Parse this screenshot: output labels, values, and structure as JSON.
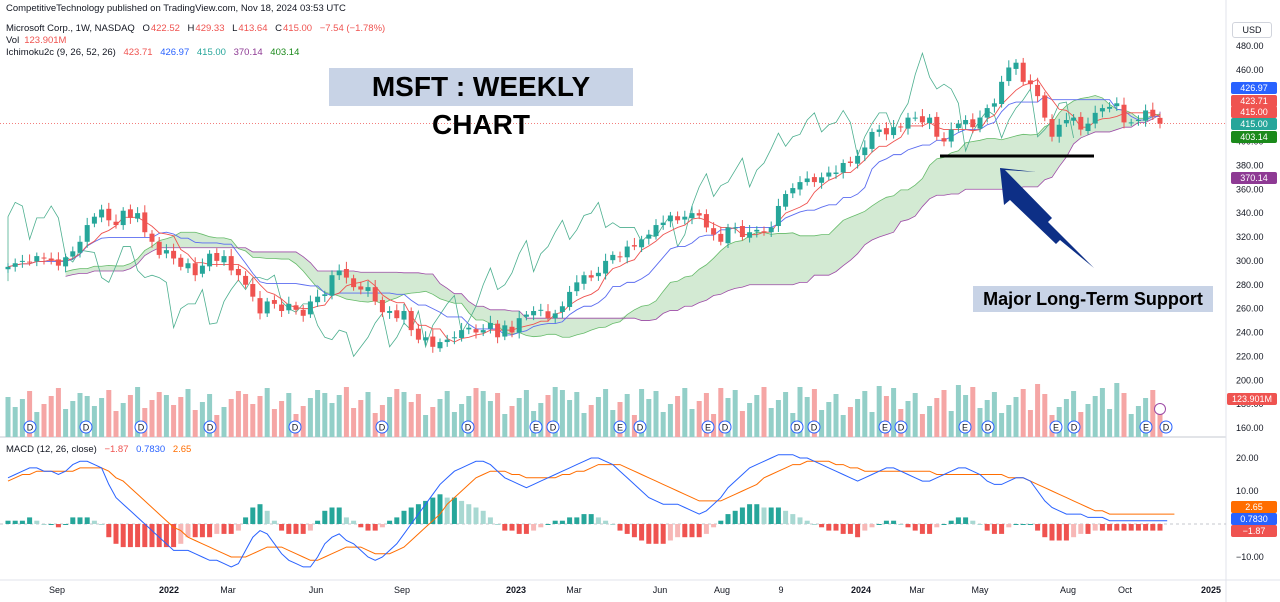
{
  "publisher_line": "CompetitiveTechnology published on TradingView.com, Nov 18, 2024 03:53 UTC",
  "legend": {
    "symbol": "Microsoft Corp., 1W, NASDAQ",
    "o_label": "O",
    "o_value": "422.52",
    "h_label": "H",
    "h_value": "429.33",
    "l_label": "L",
    "l_value": "413.64",
    "c_label": "C",
    "c_value": "415.00",
    "change": "−7.54 (−1.78%)",
    "vol_label": "Vol",
    "vol_value": "123.901M",
    "ichimoku_label": "Ichimoku2c (9, 26, 52, 26)",
    "ichimoku_values": [
      "423.71",
      "426.97",
      "415.00",
      "370.14",
      "403.14"
    ],
    "macd_label": "MACD (12, 26, close)",
    "macd_values": [
      "−1.87",
      "0.7830",
      "2.65"
    ]
  },
  "annotations": {
    "title": "MSFT : WEEKLY CHART",
    "support": "Major Long-Term Support"
  },
  "currency": "USD",
  "colors": {
    "up": "#26a69a",
    "down": "#ef5350",
    "vol_up": "#93cfc8",
    "vol_down": "#f5a6a5",
    "tenkan": "#ef5350",
    "kijun": "#5b6cf0",
    "lagging": "#4caf8f",
    "span_a": "#66bb6a",
    "span_b": "#9c4aa5",
    "cloud": "#d3ead3",
    "macd": "#2962ff",
    "signal": "#ff6d00",
    "arrow": "#0d2f86"
  },
  "price_badges": [
    {
      "value": "426.97",
      "color": "#2962ff"
    },
    {
      "value": "423.71",
      "color": "#ef5350"
    },
    {
      "value": "415.00",
      "color": "#ef5350"
    },
    {
      "value": "415.00",
      "color": "#26a69a"
    },
    {
      "value": "403.14",
      "color": "#1b8a1b"
    },
    {
      "value": "370.14",
      "color": "#8e3a94"
    },
    {
      "value": "123.901M",
      "color": "#ef5350"
    }
  ],
  "macd_badges": [
    {
      "value": "2.65",
      "color": "#ff6d00"
    },
    {
      "value": "0.7830",
      "color": "#2962ff"
    },
    {
      "value": "−1.87",
      "color": "#ef5350"
    }
  ],
  "chart_data": {
    "type": "candlestick",
    "price_axis": {
      "ticks": [
        480,
        460,
        420,
        400,
        380,
        360,
        340,
        320,
        300,
        280,
        260,
        240,
        220,
        200,
        180,
        160
      ],
      "labels": [
        "480.00",
        "460.00",
        "420.00",
        "400.00",
        "380.00",
        "360.00",
        "340.00",
        "320.00",
        "300.00",
        "280.00",
        "260.00",
        "240.00",
        "220.00",
        "200.00",
        "180.00",
        "160.00"
      ]
    },
    "macd_axis": {
      "ticks": [
        20,
        10,
        -10
      ],
      "labels": [
        "20.00",
        "10.00",
        "−10.00"
      ]
    },
    "time_axis": [
      "Sep",
      "2022",
      "Mar",
      "Jun",
      "Sep",
      "2023",
      "Mar",
      "Jun",
      "Aug",
      "9",
      "2024",
      "Mar",
      "May",
      "Aug",
      "Oct",
      "2025"
    ],
    "close": [
      295,
      298,
      300,
      299,
      304,
      302,
      300,
      296,
      303,
      308,
      316,
      330,
      337,
      343,
      334,
      330,
      342,
      336,
      340,
      324,
      316,
      305,
      309,
      302,
      295,
      298,
      288,
      296,
      306,
      300,
      304,
      292,
      288,
      280,
      270,
      256,
      266,
      264,
      258,
      264,
      259,
      254,
      266,
      270,
      272,
      288,
      292,
      286,
      278,
      276,
      278,
      266,
      257,
      258,
      252,
      258,
      242,
      234,
      236,
      228,
      232,
      234,
      236,
      242,
      244,
      240,
      242,
      248,
      236,
      246,
      240,
      252,
      255,
      258,
      259,
      252,
      256,
      262,
      274,
      282,
      288,
      286,
      290,
      300,
      305,
      303,
      312,
      312,
      318,
      322,
      330,
      332,
      338,
      334,
      337,
      340,
      338,
      328,
      322,
      316,
      328,
      328,
      320,
      324,
      326,
      324,
      328,
      346,
      356,
      361,
      366,
      369,
      366,
      370,
      374,
      374,
      382,
      382,
      388,
      395,
      408,
      410,
      406,
      412,
      412,
      420,
      420,
      416,
      420,
      404,
      400,
      410,
      415,
      418,
      412,
      420,
      428,
      432,
      450,
      462,
      466,
      450,
      448,
      438,
      420,
      404,
      414,
      418,
      420,
      410,
      415,
      424,
      428,
      429,
      432,
      416,
      416,
      418,
      426,
      421,
      415
    ],
    "volume_millions_scale": "relative",
    "ichimoku_last": {
      "tenkan": 423.71,
      "kijun": 426.97,
      "lagging": 415.0,
      "span_b": 370.14,
      "span_a": 403.14
    },
    "macd_last": {
      "histogram": -1.87,
      "macd": 0.783,
      "signal": 2.65
    },
    "macd": [
      14,
      15,
      16,
      17,
      17,
      16,
      16,
      15,
      16,
      18,
      19,
      19,
      18,
      17,
      12,
      8,
      6,
      4,
      2,
      0,
      -2,
      -4,
      -6,
      -8,
      -8,
      -8,
      -9,
      -10,
      -11,
      -11,
      -12,
      -13,
      -12,
      -8,
      -4,
      -2,
      -3,
      -6,
      -9,
      -11,
      -12,
      -13,
      -13,
      -10,
      -6,
      -4,
      -3,
      -5,
      -6,
      -8,
      -10,
      -11,
      -10,
      -8,
      -6,
      -3,
      0,
      3,
      6,
      9,
      12,
      14,
      16,
      17,
      18,
      19,
      19,
      18,
      16,
      14,
      13,
      12,
      11,
      12,
      13,
      14,
      15,
      16,
      17,
      18,
      19,
      20,
      20,
      19,
      18,
      16,
      14,
      12,
      10,
      8,
      7,
      6,
      6,
      6,
      5,
      4,
      3,
      4,
      6,
      8,
      11,
      13,
      15,
      17,
      18,
      19,
      20,
      21,
      21,
      21,
      20,
      20,
      19,
      18,
      17,
      16,
      15,
      14,
      13,
      14,
      15,
      16,
      17,
      17,
      16,
      15,
      14,
      13,
      13,
      14,
      15,
      16,
      17,
      17,
      16,
      15,
      13,
      12,
      12,
      13,
      14,
      14,
      13,
      10,
      7,
      5,
      4,
      3,
      3,
      3,
      2,
      2,
      2,
      1,
      1,
      1,
      1,
      1,
      1,
      1,
      1,
      1
    ],
    "signal": [
      13,
      14,
      15,
      15,
      16,
      16,
      16,
      16,
      16,
      16,
      17,
      17,
      17,
      17,
      16,
      14,
      13,
      11,
      9,
      7,
      5,
      3,
      1,
      -1,
      -2,
      -4,
      -5,
      -6,
      -7,
      -8,
      -9,
      -10,
      -10,
      -10,
      -9,
      -8,
      -7,
      -7,
      -7,
      -8,
      -9,
      -10,
      -11,
      -11,
      -10,
      -9,
      -8,
      -7,
      -7,
      -7,
      -8,
      -9,
      -9,
      -9,
      -8,
      -7,
      -5,
      -3,
      -1,
      1,
      3,
      6,
      8,
      10,
      12,
      14,
      15,
      16,
      16,
      16,
      15,
      15,
      14,
      14,
      14,
      14,
      14,
      15,
      15,
      16,
      16,
      17,
      18,
      18,
      18,
      18,
      17,
      16,
      15,
      14,
      13,
      12,
      11,
      10,
      9,
      8,
      7,
      7,
      7,
      7,
      8,
      9,
      10,
      11,
      12,
      14,
      15,
      16,
      17,
      18,
      18,
      19,
      19,
      19,
      19,
      18,
      18,
      17,
      17,
      16,
      16,
      16,
      16,
      16,
      16,
      16,
      16,
      16,
      16,
      15,
      15,
      15,
      15,
      15,
      15,
      15,
      15,
      15,
      15,
      14,
      14,
      14,
      13,
      12,
      11,
      10,
      9,
      8,
      7,
      6,
      5,
      4,
      4,
      3,
      3,
      3,
      3,
      3,
      3,
      3,
      3,
      3,
      3
    ]
  }
}
